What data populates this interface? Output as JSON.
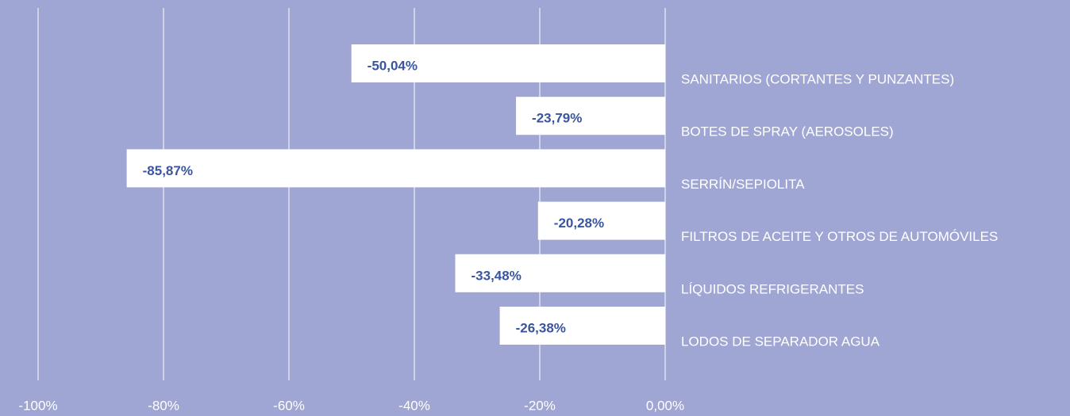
{
  "chart_data": {
    "type": "bar",
    "orientation": "horizontal",
    "categories": [
      "SANITARIOS (CORTANTES Y PUNZANTES)",
      "BOTES DE SPRAY (AEROSOLES)",
      "SERRÍN/SEPIOLITA",
      "FILTROS DE ACEITE Y OTROS DE AUTOMÓVILES",
      "LÍQUIDOS REFRIGERANTES",
      "LODOS DE SEPARADOR AGUA"
    ],
    "values": [
      -50.04,
      -23.79,
      -85.87,
      -20.28,
      -33.48,
      -26.38
    ],
    "value_labels": [
      "-50,04%",
      "-23,79%",
      "-85,87%",
      "-20,28%",
      "-33,48%",
      "-26,38%"
    ],
    "color": "#ffffff",
    "xlim": [
      -100,
      0
    ],
    "xticks": [
      {
        "value": -100,
        "label": "-100%"
      },
      {
        "value": -80,
        "label": "-80%"
      },
      {
        "value": -60,
        "label": "-60%"
      },
      {
        "value": -40,
        "label": "-40%"
      },
      {
        "value": -20,
        "label": "-20%"
      },
      {
        "value": 0,
        "label": "0,00%"
      }
    ],
    "grid": true
  }
}
